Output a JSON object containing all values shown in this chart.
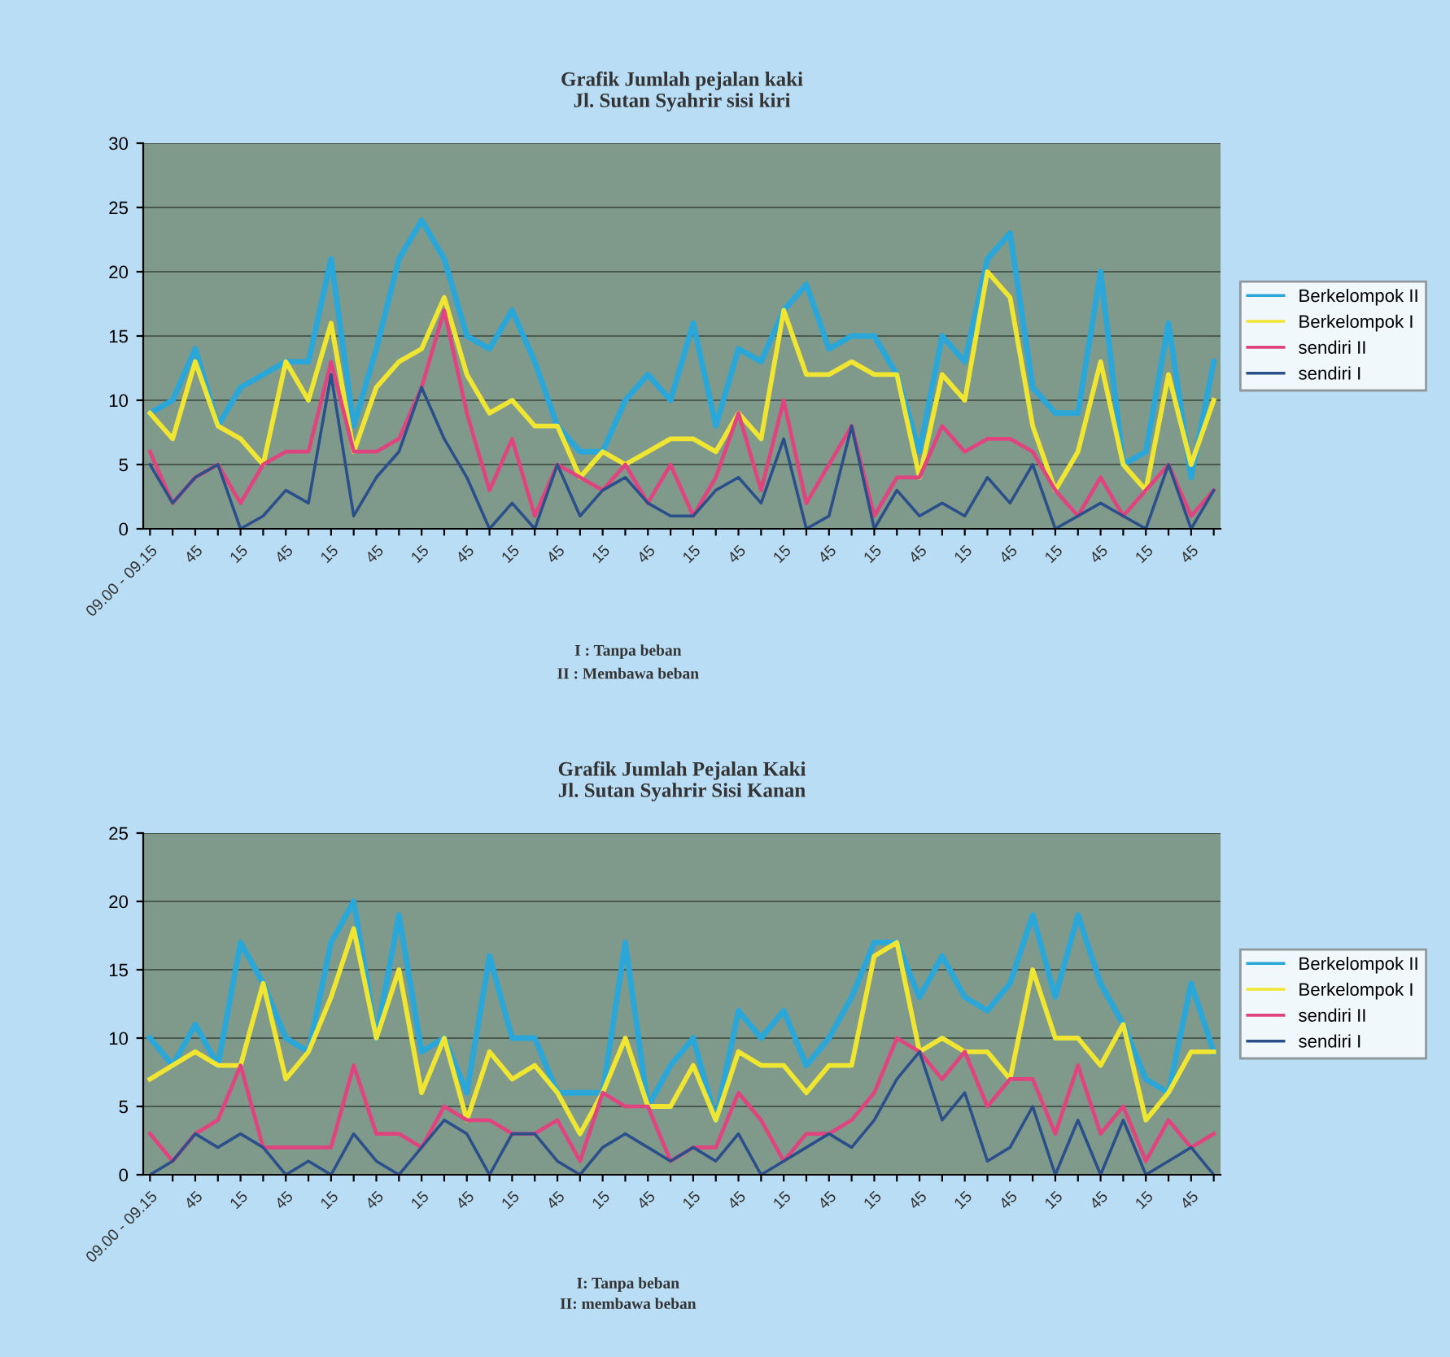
{
  "chart_data": [
    {
      "type": "line",
      "title": "Grafik Jumlah pejalan kaki\nJl. Sutan Syahrir sisi kiri",
      "categories": [
        "09.00 - 09.15",
        null,
        "45",
        null,
        "15",
        null,
        "45",
        null,
        "15",
        null,
        "45",
        null,
        "15",
        null,
        "45",
        null,
        "15",
        null,
        "45",
        null,
        "15",
        null,
        "45",
        null,
        "15",
        null,
        "45",
        null,
        "15",
        null,
        "45",
        null,
        "15",
        null,
        "45",
        null,
        "15",
        null,
        "45",
        null,
        "15",
        null,
        "45",
        null,
        "15",
        null,
        "45",
        null
      ],
      "series": [
        {
          "name": "Berkelompok II",
          "color": "#2aa7d8",
          "values": [
            9,
            10,
            14,
            8,
            11,
            12,
            13,
            13,
            21,
            8,
            14,
            21,
            24,
            21,
            15,
            14,
            17,
            13,
            8,
            6,
            6,
            10,
            12,
            10,
            16,
            8,
            14,
            13,
            17,
            19,
            14,
            15,
            15,
            12,
            6,
            15,
            13,
            21,
            23,
            11,
            9,
            9,
            20,
            5,
            6,
            16,
            4,
            13
          ]
        },
        {
          "name": "Berkelompok I",
          "color": "#f0e632",
          "values": [
            9,
            7,
            13,
            8,
            7,
            5,
            13,
            10,
            16,
            6,
            11,
            13,
            14,
            18,
            12,
            9,
            10,
            8,
            8,
            4,
            6,
            5,
            6,
            7,
            7,
            6,
            9,
            7,
            17,
            12,
            12,
            13,
            12,
            12,
            4,
            12,
            10,
            20,
            18,
            8,
            3,
            6,
            13,
            5,
            3,
            12,
            5,
            10
          ]
        },
        {
          "name": "sendiri II",
          "color": "#e0447f",
          "values": [
            6,
            2,
            4,
            5,
            2,
            5,
            6,
            6,
            13,
            6,
            6,
            7,
            11,
            17,
            9,
            3,
            7,
            1,
            5,
            4,
            3,
            5,
            2,
            5,
            1,
            4,
            9,
            3,
            10,
            2,
            5,
            8,
            1,
            4,
            4,
            8,
            6,
            7,
            7,
            6,
            3,
            1,
            4,
            1,
            3,
            5,
            1,
            3
          ]
        },
        {
          "name": "sendiri I",
          "color": "#2b4f8a",
          "values": [
            5,
            2,
            4,
            5,
            0,
            1,
            3,
            2,
            12,
            1,
            4,
            6,
            11,
            7,
            4,
            0,
            2,
            0,
            5,
            1,
            3,
            4,
            2,
            1,
            1,
            3,
            4,
            2,
            7,
            0,
            1,
            8,
            0,
            3,
            1,
            2,
            1,
            4,
            2,
            5,
            0,
            1,
            2,
            1,
            0,
            5,
            0,
            3
          ]
        }
      ],
      "ylim": [
        0,
        30
      ],
      "yticks": [
        0,
        5,
        10,
        15,
        20,
        25,
        30
      ],
      "grid": "y",
      "legend": "right",
      "annotations": [
        "I : Tanpa beban",
        "II : Membawa beban"
      ]
    },
    {
      "type": "line",
      "title": "Grafik Jumlah Pejalan Kaki\nJl. Sutan Syahrir Sisi Kanan",
      "categories": [
        "09.00 - 09.15",
        null,
        "45",
        null,
        "15",
        null,
        "45",
        null,
        "15",
        null,
        "45",
        null,
        "15",
        null,
        "45",
        null,
        "15",
        null,
        "45",
        null,
        "15",
        null,
        "45",
        null,
        "15",
        null,
        "45",
        null,
        "15",
        null,
        "45",
        null,
        "15",
        null,
        "45",
        null,
        "15",
        null,
        "45",
        null,
        "15",
        null,
        "45",
        null,
        "15",
        null,
        "45",
        null
      ],
      "series": [
        {
          "name": "Berkelompok II",
          "color": "#2aa7d8",
          "values": [
            10,
            8,
            11,
            8,
            17,
            14,
            10,
            9,
            17,
            20,
            10,
            19,
            9,
            10,
            6,
            16,
            10,
            10,
            6,
            6,
            6,
            17,
            5,
            8,
            10,
            4,
            12,
            10,
            12,
            8,
            10,
            13,
            17,
            17,
            13,
            16,
            13,
            12,
            14,
            19,
            13,
            19,
            14,
            11,
            7,
            6,
            14,
            9
          ]
        },
        {
          "name": "Berkelompok I",
          "color": "#f0e632",
          "values": [
            7,
            8,
            9,
            8,
            8,
            14,
            7,
            9,
            13,
            18,
            10,
            15,
            6,
            10,
            4,
            9,
            7,
            8,
            6,
            3,
            6,
            10,
            5,
            5,
            8,
            4,
            9,
            8,
            8,
            6,
            8,
            8,
            16,
            17,
            9,
            10,
            9,
            9,
            7,
            15,
            10,
            10,
            8,
            11,
            4,
            6,
            9,
            9
          ]
        },
        {
          "name": "sendiri II",
          "color": "#e0447f",
          "values": [
            3,
            1,
            3,
            4,
            8,
            2,
            2,
            2,
            2,
            8,
            3,
            3,
            2,
            5,
            4,
            4,
            3,
            3,
            4,
            1,
            6,
            5,
            5,
            1,
            2,
            2,
            6,
            4,
            1,
            3,
            3,
            4,
            6,
            10,
            9,
            7,
            9,
            5,
            7,
            7,
            3,
            8,
            3,
            5,
            1,
            4,
            2,
            3
          ]
        },
        {
          "name": "sendiri I",
          "color": "#2b4f8a",
          "values": [
            0,
            1,
            3,
            2,
            3,
            2,
            0,
            1,
            0,
            3,
            1,
            0,
            2,
            4,
            3,
            0,
            3,
            3,
            1,
            0,
            2,
            3,
            2,
            1,
            2,
            1,
            3,
            0,
            1,
            2,
            3,
            2,
            4,
            7,
            9,
            4,
            6,
            1,
            2,
            5,
            0,
            4,
            0,
            4,
            0,
            1,
            2,
            0
          ]
        }
      ],
      "ylim": [
        0,
        25
      ],
      "yticks": [
        0,
        5,
        10,
        15,
        20,
        25
      ],
      "grid": "y",
      "legend": "right",
      "annotations": [
        "I: Tanpa beban",
        "II: membawa beban"
      ]
    }
  ]
}
